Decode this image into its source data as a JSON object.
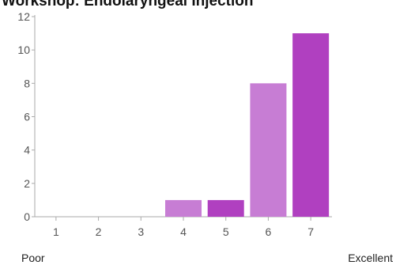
{
  "chart_data": {
    "type": "bar",
    "title": "Workshop: Endolaryngeal Injection",
    "categories": [
      "1",
      "2",
      "3",
      "4",
      "5",
      "6",
      "7"
    ],
    "values": [
      0,
      0,
      0,
      1,
      1,
      8,
      11
    ],
    "colors": [
      "#c77dd4",
      "#b040c0",
      "#c77dd4",
      "#c77dd4",
      "#b040c0",
      "#c77dd4",
      "#b040c0"
    ],
    "yticks": [
      "0",
      "2",
      "4",
      "6",
      "8",
      "10",
      "12"
    ],
    "ylim": [
      0,
      12
    ],
    "grid": false,
    "legend": "none"
  },
  "scale": {
    "min_label": "Poor",
    "max_label": "Excellent"
  }
}
